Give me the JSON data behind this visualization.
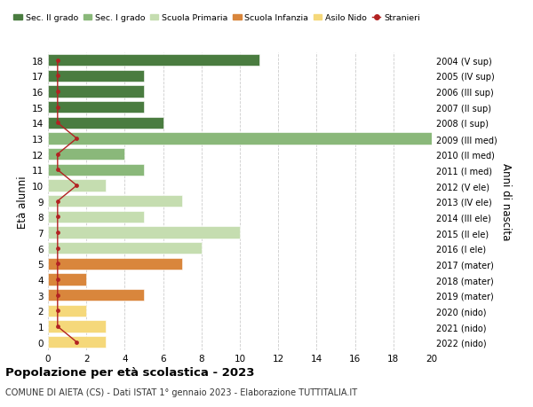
{
  "ages": [
    18,
    17,
    16,
    15,
    14,
    13,
    12,
    11,
    10,
    9,
    8,
    7,
    6,
    5,
    4,
    3,
    2,
    1,
    0
  ],
  "birth_years": [
    "2004 (V sup)",
    "2005 (IV sup)",
    "2006 (III sup)",
    "2007 (II sup)",
    "2008 (I sup)",
    "2009 (III med)",
    "2010 (II med)",
    "2011 (I med)",
    "2012 (V ele)",
    "2013 (IV ele)",
    "2014 (III ele)",
    "2015 (II ele)",
    "2016 (I ele)",
    "2017 (mater)",
    "2018 (mater)",
    "2019 (mater)",
    "2020 (nido)",
    "2021 (nido)",
    "2022 (nido)"
  ],
  "bar_values": [
    11,
    5,
    5,
    5,
    6,
    20,
    4,
    5,
    3,
    7,
    5,
    10,
    8,
    7,
    2,
    5,
    2,
    3,
    3
  ],
  "stranieri_x": [
    0.5,
    0.5,
    0.5,
    0.5,
    0.5,
    1.5,
    0.5,
    0.5,
    1.5,
    0.5,
    0.5,
    0.5,
    0.5,
    0.5,
    0.5,
    0.5,
    0.5,
    0.5,
    1.5
  ],
  "bar_colors": [
    "#4a7c40",
    "#4a7c40",
    "#4a7c40",
    "#4a7c40",
    "#4a7c40",
    "#8ab87a",
    "#8ab87a",
    "#8ab87a",
    "#c5ddb0",
    "#c5ddb0",
    "#c5ddb0",
    "#c5ddb0",
    "#c5ddb0",
    "#d9863c",
    "#d9863c",
    "#d9863c",
    "#f5d87a",
    "#f5d87a",
    "#f5d87a"
  ],
  "legend_labels": [
    "Sec. II grado",
    "Sec. I grado",
    "Scuola Primaria",
    "Scuola Infanzia",
    "Asilo Nido",
    "Stranieri"
  ],
  "legend_colors": [
    "#4a7c40",
    "#8ab87a",
    "#c5ddb0",
    "#d9863c",
    "#f5d87a",
    "#b22222"
  ],
  "ylabel": "Età alunni",
  "ylabel_right": "Anni di nascita",
  "title": "Popolazione per età scolastica - 2023",
  "subtitle": "COMUNE DI AIETA (CS) - Dati ISTAT 1° gennaio 2023 - Elaborazione TUTTITALIA.IT",
  "xlim": [
    0,
    20
  ],
  "xticks": [
    0,
    2,
    4,
    6,
    8,
    10,
    12,
    14,
    16,
    18,
    20
  ],
  "background_color": "#ffffff",
  "grid_color": "#cccccc",
  "bar_height": 0.75,
  "stranieri_color": "#b22222"
}
